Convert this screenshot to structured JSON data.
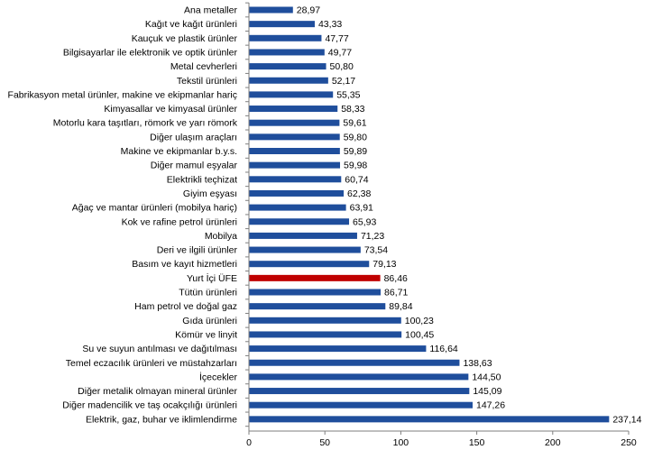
{
  "chart_data": {
    "type": "bar",
    "orientation": "horizontal",
    "title": "",
    "xlabel": "",
    "ylabel": "",
    "xlim": [
      0,
      250
    ],
    "xticks": [
      0,
      50,
      100,
      150,
      200,
      250
    ],
    "grid": false,
    "legend": "none",
    "colors": {
      "default": "#1f4e9c",
      "highlight": "#c00000"
    },
    "highlight_category": "Yurt İçi ÜFE",
    "categories": [
      "Ana metaller",
      "Kağıt ve kağıt ürünleri",
      "Kauçuk ve plastik ürünler",
      "Bilgisayarlar ile elektronik ve optik ürünler",
      "Metal cevherleri",
      "Tekstil ürünleri",
      "Fabrikasyon metal ürünler, makine ve ekipmanlar hariç",
      "Kimyasallar ve kimyasal ürünler",
      "Motorlu kara taşıtları, römork ve yarı römork",
      "Diğer ulaşım araçları",
      "Makine ve ekipmanlar b.y.s.",
      "Diğer mamul eşyalar",
      "Elektrikli teçhizat",
      "Giyim eşyası",
      "Ağaç ve mantar ürünleri (mobilya hariç)",
      "Kok ve rafine petrol ürünleri",
      "Mobilya",
      "Deri ve ilgili ürünler",
      "Basım ve kayıt hizmetleri",
      "Yurt İçi ÜFE",
      "Tütün ürünleri",
      "Ham petrol ve doğal gaz",
      "Gıda ürünleri",
      "Kömür ve linyit",
      "Su ve suyun antılması ve dağıtılması",
      "Temel eczacılık ürünleri ve müstahzarları",
      "İçecekler",
      "Diğer metalik olmayan mineral ürünler",
      "Diğer madencilik ve taş ocakçılığı ürünleri",
      "Elektrik, gaz, buhar ve iklimlendirme"
    ],
    "values": [
      28.97,
      43.33,
      47.77,
      49.77,
      50.8,
      52.17,
      55.35,
      58.33,
      59.61,
      59.8,
      59.89,
      59.98,
      60.74,
      62.38,
      63.91,
      65.93,
      71.23,
      73.54,
      79.13,
      86.46,
      86.71,
      89.84,
      100.23,
      100.45,
      116.64,
      138.63,
      144.5,
      145.09,
      147.26,
      237.14
    ],
    "value_labels": [
      "28,97",
      "43,33",
      "47,77",
      "49,77",
      "50,80",
      "52,17",
      "55,35",
      "58,33",
      "59,61",
      "59,80",
      "59,89",
      "59,98",
      "60,74",
      "62,38",
      "63,91",
      "65,93",
      "71,23",
      "73,54",
      "79,13",
      "86,46",
      "86,71",
      "89,84",
      "100,23",
      "100,45",
      "116,64",
      "138,63",
      "144,50",
      "145,09",
      "147,26",
      "237,14"
    ]
  }
}
